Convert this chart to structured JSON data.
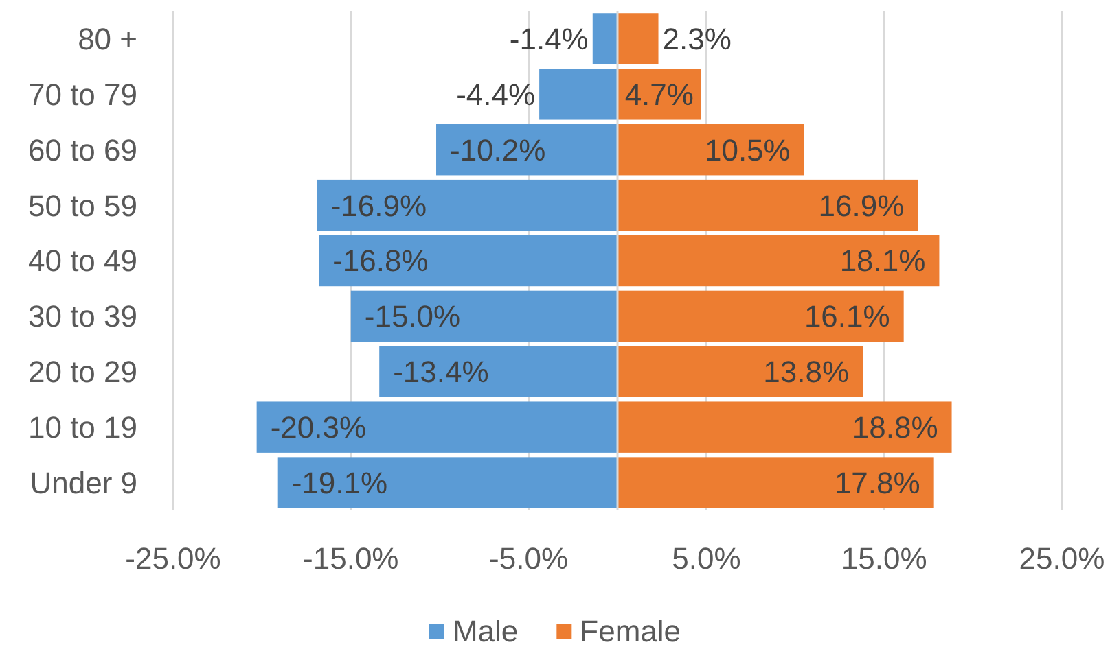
{
  "chart_data": {
    "type": "bar",
    "orientation": "horizontal",
    "stacked": true,
    "categories": [
      "80 +",
      "70 to 79",
      "60 to 69",
      "50 to 59",
      "40 to 49",
      "30 to 39",
      "20 to 29",
      "10 to 19",
      "Under 9"
    ],
    "series": [
      {
        "name": "Male",
        "color": "#5b9bd5",
        "values": [
          -1.4,
          -4.4,
          -10.2,
          -16.9,
          -16.8,
          -15.0,
          -13.4,
          -20.3,
          -19.1
        ],
        "value_labels": [
          "-1.4%",
          "-4.4%",
          "-10.2%",
          "-16.9%",
          "-16.8%",
          "-15.0%",
          "-13.4%",
          "-20.3%",
          "-19.1%"
        ]
      },
      {
        "name": "Female",
        "color": "#ed7d31",
        "values": [
          2.3,
          4.7,
          10.5,
          16.9,
          18.1,
          16.1,
          13.8,
          18.8,
          17.8
        ],
        "value_labels": [
          "2.3%",
          "4.7%",
          "10.5%",
          "16.9%",
          "18.1%",
          "16.1%",
          "13.8%",
          "18.8%",
          "17.8%"
        ]
      }
    ],
    "xlim": [
      -25,
      25
    ],
    "xticks": [
      {
        "value": -25,
        "label": "-25.0%"
      },
      {
        "value": -15,
        "label": "-15.0%"
      },
      {
        "value": -5,
        "label": "-5.0%"
      },
      {
        "value": 5,
        "label": "5.0%"
      },
      {
        "value": 15,
        "label": "15.0%"
      },
      {
        "value": 25,
        "label": "25.0%"
      }
    ],
    "grid": "x",
    "legend": "bottom"
  }
}
